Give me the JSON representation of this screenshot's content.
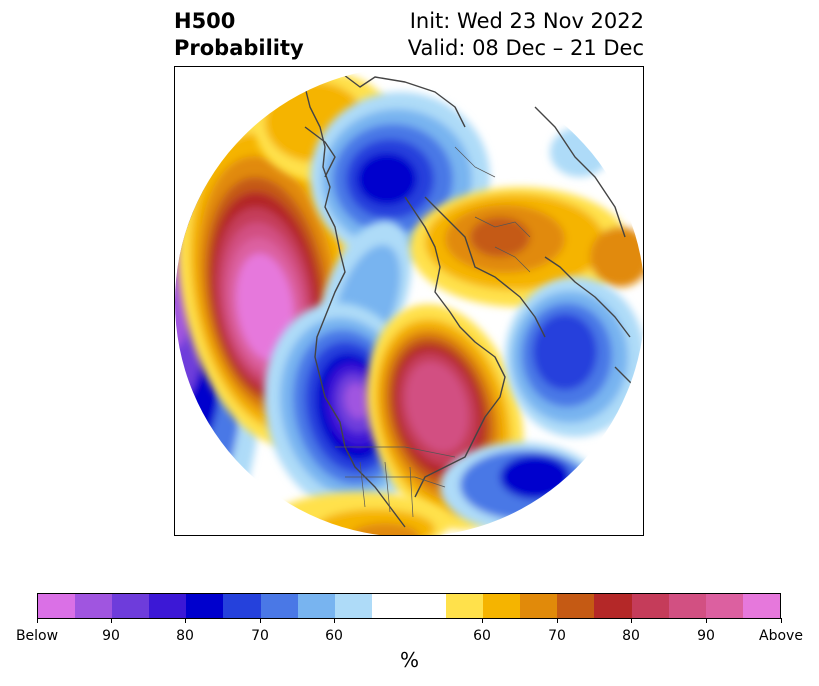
{
  "header": {
    "title_line1": "H500",
    "title_line2": "Probability",
    "init_text": "Init: Wed 23 Nov 2022",
    "valid_text": "Valid: 08 Dec – 21 Dec"
  },
  "colorbar": {
    "colors": [
      "#da70e6",
      "#a055e0",
      "#6e3cdb",
      "#3c18d6",
      "#0000cd",
      "#2541dc",
      "#4a78e6",
      "#78b4f0",
      "#aedbf8",
      "#ffffff",
      "#ffe14b",
      "#f5b400",
      "#e18a0a",
      "#c55a14",
      "#b42828",
      "#c53c5a",
      "#d25082",
      "#dc60a0",
      "#e678dc"
    ],
    "tick_labels": [
      "Below",
      "90",
      "80",
      "70",
      "60",
      "60",
      "70",
      "80",
      "90",
      "Above"
    ],
    "unit": "%"
  },
  "map": {
    "projection": "polar stereographic",
    "region": "Northern Hemisphere (North America / North Pacific / Atlantic)",
    "anomalies": [
      {
        "region": "Northeast Pacific / Gulf of Alaska",
        "sign": "above",
        "max_probability": "Above"
      },
      {
        "region": "Western / Central US & Canada",
        "sign": "below",
        "max_probability": "Below"
      },
      {
        "region": "Eastern Canada / Greenland",
        "sign": "above",
        "max_probability": "90"
      },
      {
        "region": "Western Pacific (far left)",
        "sign": "below",
        "max_probability": "Below"
      },
      {
        "region": "Siberia / Arctic",
        "sign": "below",
        "max_probability": "80"
      },
      {
        "region": "Northern Europe / Scandinavia",
        "sign": "above",
        "max_probability": "70"
      },
      {
        "region": "Eastern North Atlantic",
        "sign": "below",
        "max_probability": "80"
      },
      {
        "region": "Subtropical Atlantic",
        "sign": "below",
        "max_probability": "80"
      }
    ]
  }
}
